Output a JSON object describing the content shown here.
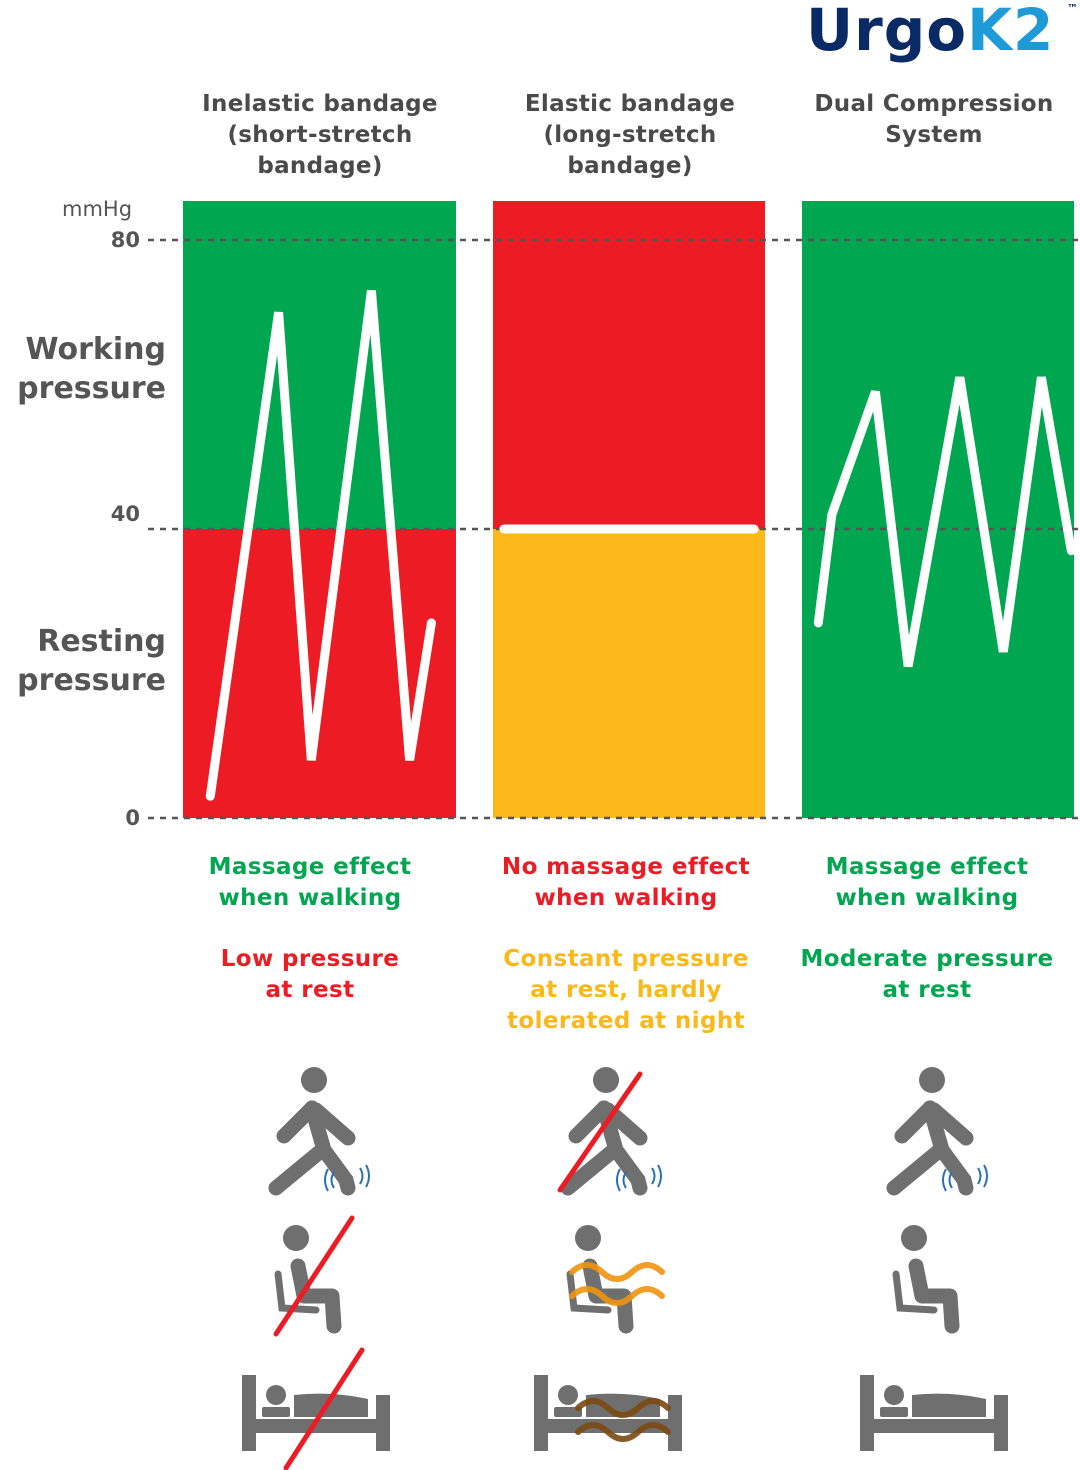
{
  "brand": {
    "name_part1": "Urgo",
    "name_part2": "K2",
    "trademark": "™"
  },
  "chart_data": {
    "type": "line",
    "ylabel": "",
    "unit": "mmHg",
    "ylim": [
      0,
      80
    ],
    "yticks": [
      0,
      40,
      80
    ],
    "zones": {
      "working": "Working\npressure",
      "resting": "Resting\npressure"
    },
    "colors": {
      "green": "#00a650",
      "red": "#ed1c24",
      "yellow": "#fbb81a",
      "line": "#ffffff",
      "guide": "#555555"
    },
    "panels": [
      {
        "title": "Inelastic bandage\n(short-stretch\nbandage)",
        "upper_zone_color": "#00a650",
        "lower_zone_color": "#ed1c24",
        "series": [
          {
            "x": [
              0.1,
              0.35,
              0.47,
              0.69,
              0.83,
              0.91
            ],
            "y": [
              3,
              70,
              8,
              73,
              8,
              27
            ]
          }
        ]
      },
      {
        "title": "Elastic bandage\n(long-stretch\nbandage)",
        "upper_zone_color": "#ed1c24",
        "lower_zone_color": "#fbb81a",
        "series": [
          {
            "x": [
              0.04,
              0.96
            ],
            "y": [
              40,
              40
            ]
          }
        ]
      },
      {
        "title": "Dual Compression\nSystem",
        "upper_zone_color": "#00a650",
        "lower_zone_color": "#00a650",
        "series": [
          {
            "x": [
              0.06,
              0.11,
              0.27,
              0.39,
              0.58,
              0.74,
              0.88,
              0.99
            ],
            "y": [
              27,
              42,
              59,
              21,
              61,
              23,
              61,
              37
            ]
          }
        ]
      }
    ]
  },
  "effects": [
    {
      "walking": "Massage effect\nwhen walking",
      "walking_color": "#00a650",
      "rest": "Low pressure\nat rest",
      "rest_color": "#ed1c24"
    },
    {
      "walking": "No massage effect\nwhen walking",
      "walking_color": "#ed1c24",
      "rest": "Constant pressure\nat rest, hardly\ntolerated at night",
      "rest_color": "#fbb81a"
    },
    {
      "walking": "Massage effect\nwhen walking",
      "walking_color": "#00a650",
      "rest": "Moderate pressure\nat rest",
      "rest_color": "#00a650"
    }
  ],
  "icons": [
    {
      "walking": "walking-icon",
      "walking_status": "ok",
      "sitting": "sitting-icon",
      "sitting_status": "crossed",
      "lying": "lying-in-bed-icon",
      "lying_status": "crossed"
    },
    {
      "walking": "walking-icon",
      "walking_status": "crossed",
      "sitting": "sitting-icon",
      "sitting_status": "discomfort",
      "lying": "lying-in-bed-icon",
      "lying_status": "discomfort"
    },
    {
      "walking": "walking-icon",
      "walking_status": "ok",
      "sitting": "sitting-icon",
      "sitting_status": "ok",
      "lying": "lying-in-bed-icon",
      "lying_status": "ok"
    }
  ]
}
